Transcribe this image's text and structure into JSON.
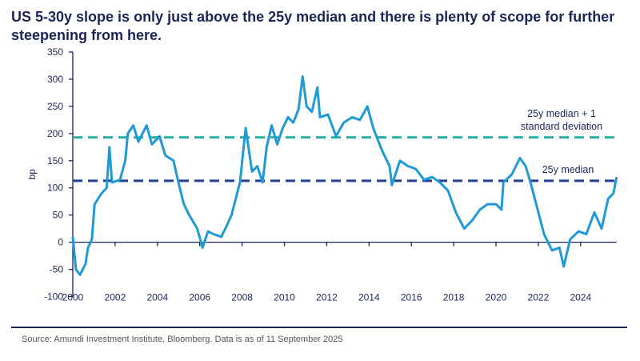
{
  "title": "US 5-30y slope is only just above the 25y median and there is plenty of scope for further steepening from here.",
  "source": "Source: Amundi Investment Institute, Bloomberg. Data is as of 11 September 2025",
  "colors": {
    "series": "#1f9ad6",
    "median": "#22408f",
    "upper": "#2ab0a2",
    "text": "#1b2657"
  },
  "chart_data": {
    "type": "line",
    "title": "US 5-30y slope is only just above the 25y median and there is plenty of scope for further steepening from here.",
    "xlabel": "",
    "ylabel": "bp",
    "xlim": [
      2000,
      2025.7
    ],
    "ylim": [
      -100,
      350
    ],
    "x_ticks": [
      2000,
      2002,
      2004,
      2006,
      2008,
      2010,
      2012,
      2014,
      2016,
      2018,
      2020,
      2022,
      2024
    ],
    "y_ticks": [
      350,
      300,
      250,
      200,
      150,
      100,
      50,
      0,
      -50,
      -100
    ],
    "grid": false,
    "reference_lines": [
      {
        "name": "25y median + 1 standard deviation",
        "label_line1": "25y median + 1",
        "label_line2": "standard deviation",
        "value": 193
      },
      {
        "name": "25y median",
        "label_line1": "25y median",
        "value": 113
      }
    ],
    "series": [
      {
        "x": [
          2000.0,
          2000.15,
          2000.34,
          2000.6,
          2000.72,
          2000.9,
          2001.03,
          2001.36,
          2001.6,
          2001.73,
          2001.85,
          2002.23,
          2002.48,
          2002.6,
          2002.86,
          2003.1,
          2003.49,
          2003.74,
          2004.1,
          2004.37,
          2004.76,
          2004.99,
          2005.25,
          2005.5,
          2005.88,
          2006.13,
          2006.39,
          2006.64,
          2007.02,
          2007.27,
          2007.5,
          2007.9,
          2008.17,
          2008.47,
          2008.72,
          2008.97,
          2009.16,
          2009.4,
          2009.66,
          2009.92,
          2010.17,
          2010.42,
          2010.67,
          2010.86,
          2011.05,
          2011.3,
          2011.56,
          2011.68,
          2012.06,
          2012.44,
          2012.8,
          2013.2,
          2013.57,
          2013.92,
          2014.2,
          2014.6,
          2014.97,
          2015.08,
          2015.46,
          2015.84,
          2016.2,
          2016.6,
          2016.98,
          2017.35,
          2017.73,
          2018.1,
          2018.5,
          2018.87,
          2019.24,
          2019.6,
          2020.0,
          2020.26,
          2020.35,
          2020.75,
          2021.13,
          2021.4,
          2021.63,
          2021.9,
          2022.27,
          2022.65,
          2023.0,
          2023.2,
          2023.5,
          2023.9,
          2024.27,
          2024.65,
          2024.99,
          2025.3,
          2025.55,
          2025.7
        ],
        "y": [
          10,
          -50,
          -60,
          -40,
          -10,
          5,
          70,
          90,
          100,
          175,
          110,
          115,
          150,
          200,
          215,
          185,
          215,
          180,
          195,
          160,
          150,
          110,
          70,
          50,
          25,
          -10,
          20,
          15,
          10,
          30,
          50,
          110,
          210,
          130,
          140,
          110,
          175,
          215,
          180,
          210,
          230,
          220,
          245,
          305,
          250,
          240,
          285,
          230,
          235,
          195,
          220,
          230,
          225,
          250,
          210,
          170,
          140,
          105,
          150,
          140,
          135,
          115,
          120,
          110,
          95,
          55,
          25,
          40,
          60,
          70,
          70,
          60,
          110,
          125,
          155,
          140,
          110,
          70,
          15,
          -15,
          -10,
          -45,
          5,
          20,
          15,
          55,
          25,
          80,
          90,
          120
        ]
      }
    ]
  }
}
